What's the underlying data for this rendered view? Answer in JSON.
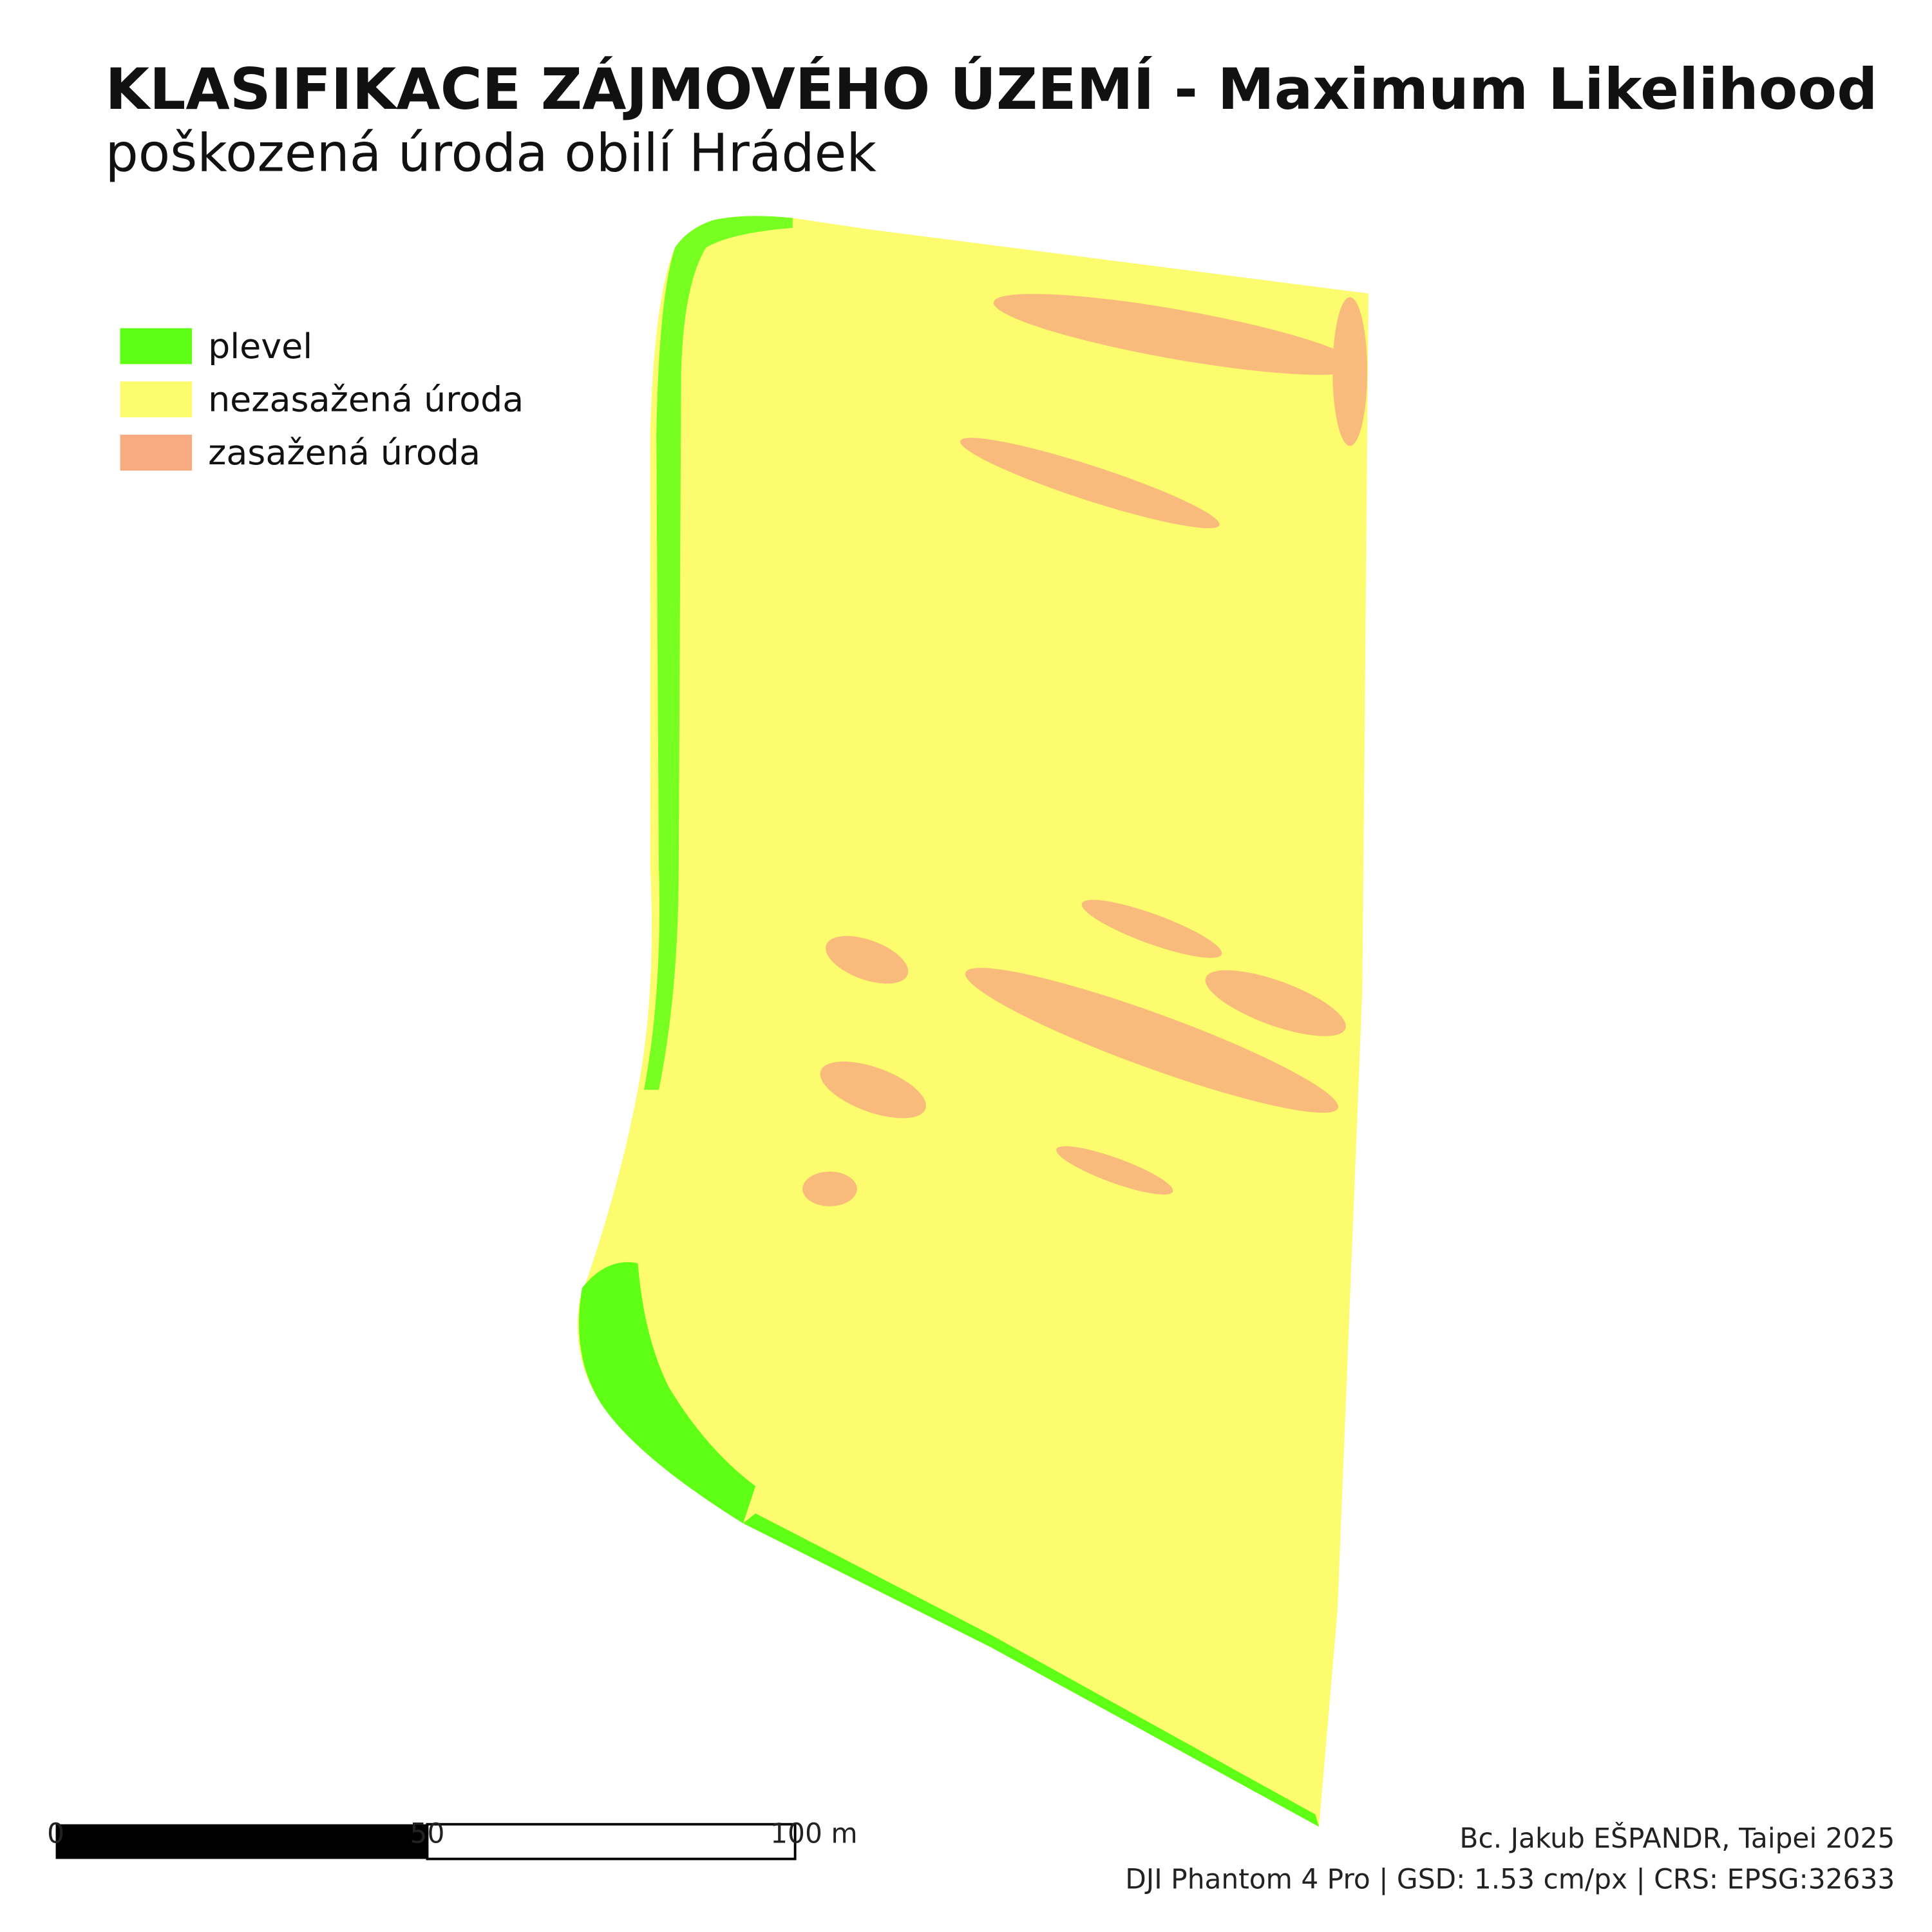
{
  "header": {
    "title": "KLASIFIKACE ZÁJMOVÉHO ÚZEMÍ - Maximum Likelihood",
    "subtitle": "poškozená úroda obilí Hrádek"
  },
  "legend": {
    "items": [
      {
        "label": "plevel",
        "color": "#5eff14"
      },
      {
        "label": "nezasažená úroda",
        "color": "#fcfc6e"
      },
      {
        "label": "zasažená úroda",
        "color": "#f8aa80"
      }
    ]
  },
  "scale_bar": {
    "labels": [
      "0",
      "50",
      "100 m"
    ]
  },
  "credits": [
    "Bc. Jakub EŠPANDR, Taipei 2025",
    "DJI Phantom 4 Pro | GSD: 1.53 cm/px | CRS: EPSG:32633"
  ]
}
